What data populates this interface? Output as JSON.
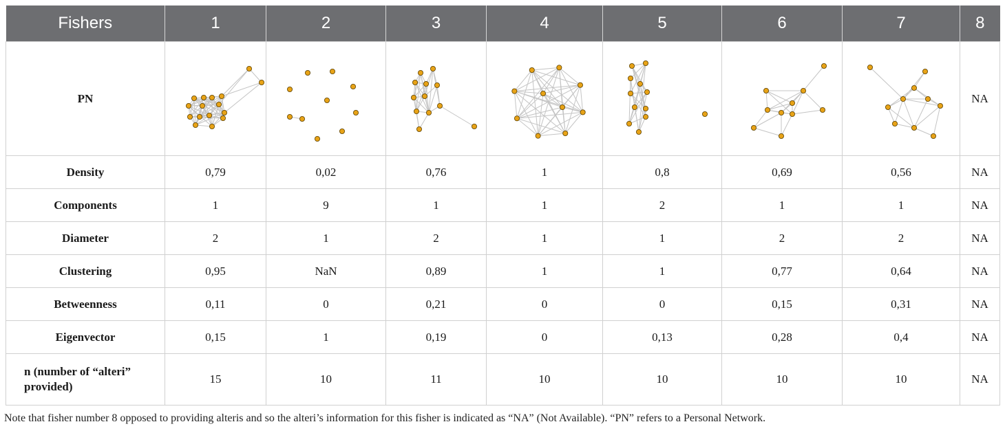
{
  "header": [
    "Fishers",
    "1",
    "2",
    "3",
    "4",
    "5",
    "6",
    "7",
    "8"
  ],
  "pn_row": {
    "label": "PN",
    "na_value": "NA"
  },
  "rows": [
    {
      "label": "Density",
      "values": [
        "0,79",
        "0,02",
        "0,76",
        "1",
        "0,8",
        "0,69",
        "0,56",
        "NA"
      ]
    },
    {
      "label": "Components",
      "values": [
        "1",
        "9",
        "1",
        "1",
        "2",
        "1",
        "1",
        "NA"
      ]
    },
    {
      "label": "Diameter",
      "values": [
        "2",
        "1",
        "2",
        "1",
        "1",
        "2",
        "2",
        "NA"
      ]
    },
    {
      "label": "Clustering",
      "values": [
        "0,95",
        "NaN",
        "0,89",
        "1",
        "1",
        "0,77",
        "0,64",
        "NA"
      ]
    },
    {
      "label": "Betweenness",
      "values": [
        "0,11",
        "0",
        "0,21",
        "0",
        "0",
        "0,15",
        "0,31",
        "NA"
      ]
    },
    {
      "label": "Eigenvector",
      "values": [
        "0,15",
        "1",
        "0,19",
        "0",
        "0,13",
        "0,28",
        "0,4",
        "NA"
      ]
    },
    {
      "label": "n (number of “alteri” provided)",
      "values": [
        "15",
        "10",
        "11",
        "10",
        "10",
        "10",
        "10",
        "NA"
      ]
    }
  ],
  "note": "Note that fisher number 8 opposed to providing alteris and so the alteri’s information for this fisher is indicated as “NA” (Not Available). “PN” refers to a Personal Network.",
  "colors": {
    "header_bg": "#6d6e71",
    "node_fill": "#e8a317",
    "node_stroke": "#5a4000",
    "edge": "#c4c4c4",
    "border": "#d0d0d0"
  }
}
